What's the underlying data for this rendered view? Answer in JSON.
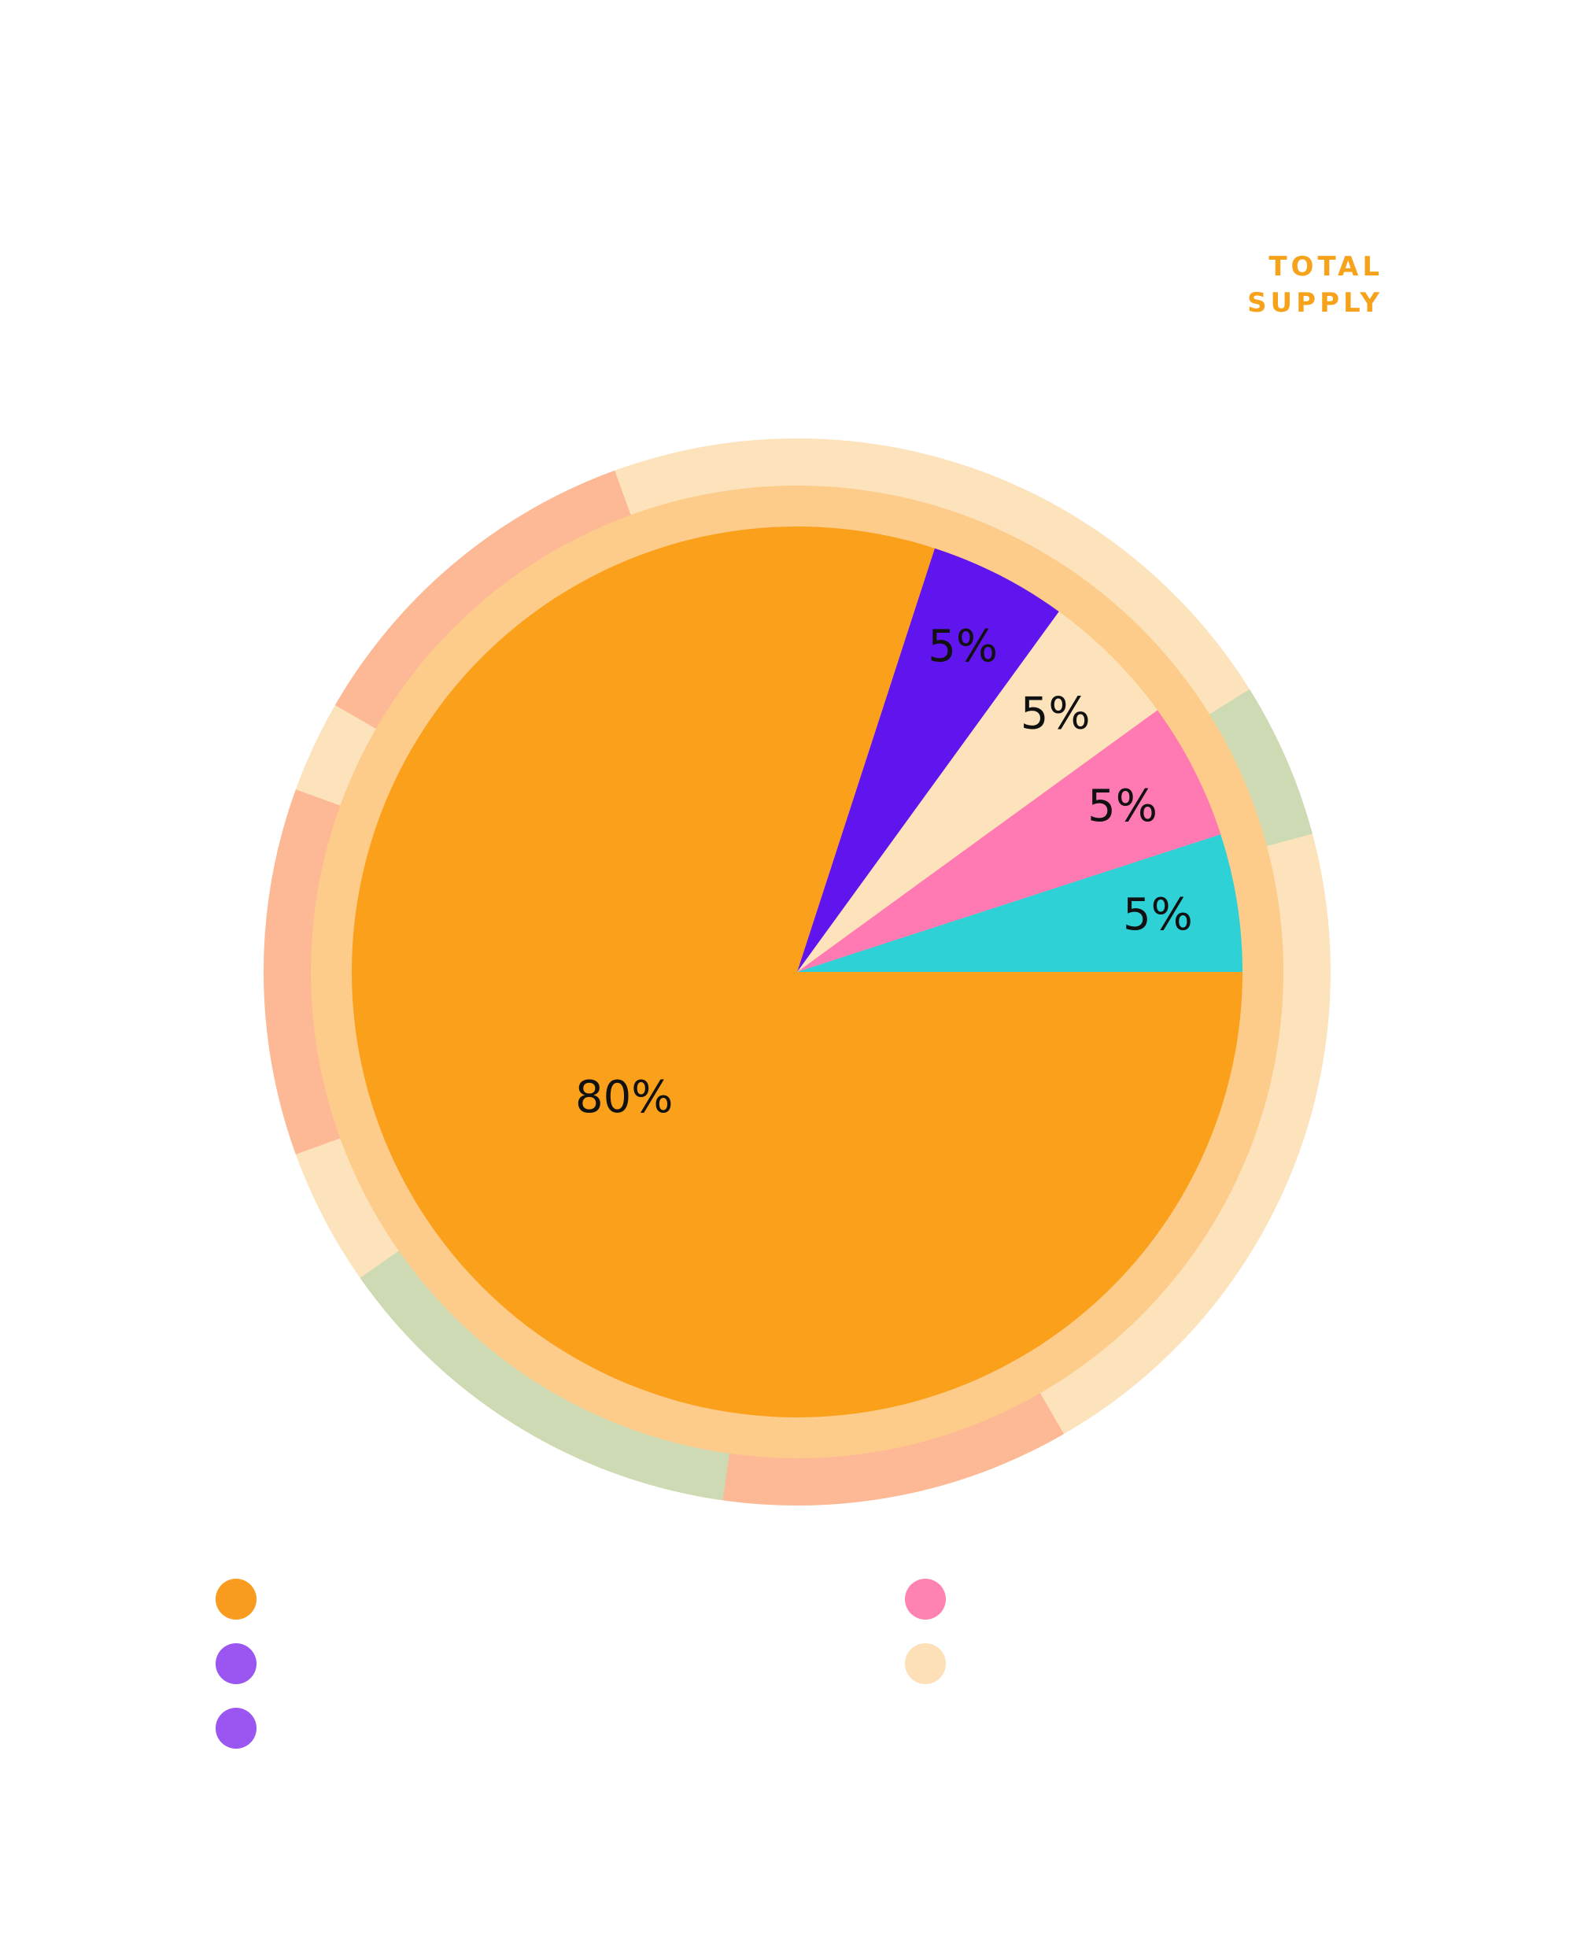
{
  "header": {
    "label_line1": "TOTAL",
    "label_line2": "SUPPLY"
  },
  "colors": {
    "accent": "#F7A21B",
    "ring_outer": "#FDE3BC",
    "ring_inner": "#FDCB8A",
    "ring_green": "#CDDAB4",
    "ring_salmon": "#FDB896"
  },
  "chart_data": {
    "type": "pie",
    "start_angle_deg": 0,
    "direction": "counterclockwise",
    "slices": [
      {
        "label": "5%",
        "value": 5,
        "color": "#2ED1D5"
      },
      {
        "label": "5%",
        "value": 5,
        "color": "#FF79B2"
      },
      {
        "label": "5%",
        "value": 5,
        "color": "#FDE3BC"
      },
      {
        "label": "5%",
        "value": 5,
        "color": "#6014EE"
      },
      {
        "label": "80%",
        "value": 80,
        "color": "#FBA01B"
      }
    ]
  },
  "legend": {
    "left": [
      {
        "color": "#F99B1E"
      },
      {
        "color": "#9B55F0"
      },
      {
        "color": "#9B55F0"
      }
    ],
    "right": [
      {
        "color": "#FF83B2"
      },
      {
        "color": "#FDE0B8"
      }
    ]
  }
}
